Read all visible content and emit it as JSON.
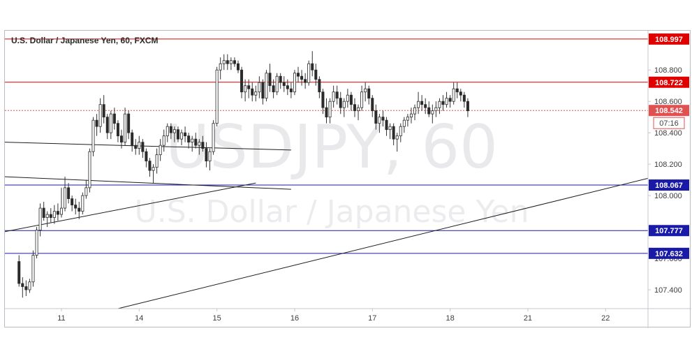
{
  "chart_data": {
    "type": "candlestick",
    "title": "U.S. Dollar / Japanese Yen, 60, FXCM",
    "watermark_symbol": "USDJPY, 60",
    "watermark_name": "U.S. Dollar / Japanese Yen",
    "x_ticks": [
      {
        "label": "11",
        "idx": 12
      },
      {
        "label": "14",
        "idx": 34
      },
      {
        "label": "15",
        "idx": 56
      },
      {
        "label": "16",
        "idx": 78
      },
      {
        "label": "17",
        "idx": 100
      },
      {
        "label": "18",
        "idx": 122
      },
      {
        "label": "21",
        "idx": 144
      },
      {
        "label": "22",
        "idx": 166
      }
    ],
    "y_ticks": [
      107.4,
      107.6,
      108.0,
      108.2,
      108.4,
      108.6,
      108.8
    ],
    "ylim": [
      107.28,
      109.05
    ],
    "xlim": [
      -4,
      178
    ],
    "horizontal_levels": [
      {
        "value": 108.997,
        "label": "108.997",
        "color": "#e00000"
      },
      {
        "value": 108.722,
        "label": "108.722",
        "color": "#e00000"
      },
      {
        "value": 108.067,
        "label": "108.067",
        "color": "#1a1aa8"
      },
      {
        "value": 107.777,
        "label": "107.777",
        "color": "#1a1aa8"
      },
      {
        "value": 107.632,
        "label": "107.632",
        "color": "#1a1aa8"
      }
    ],
    "last_price": {
      "value": 108.542,
      "label": "108.542",
      "countdown": "07:16",
      "color": "#e05252"
    },
    "trendlines": [
      {
        "x1": -4,
        "y1": 108.34,
        "x2": 77,
        "y2": 108.29
      },
      {
        "x1": -4,
        "y1": 108.12,
        "x2": 77,
        "y2": 108.04
      },
      {
        "x1": -4,
        "y1": 107.77,
        "x2": 67,
        "y2": 108.08
      },
      {
        "x1": 28,
        "y1": 107.28,
        "x2": 178,
        "y2": 108.11
      }
    ],
    "candles": [
      [
        107.58,
        107.62,
        107.42,
        107.44
      ],
      [
        107.44,
        107.48,
        107.35,
        107.42
      ],
      [
        107.42,
        107.46,
        107.36,
        107.4
      ],
      [
        107.4,
        107.47,
        107.38,
        107.45
      ],
      [
        107.45,
        107.65,
        107.42,
        107.62
      ],
      [
        107.62,
        107.8,
        107.6,
        107.78
      ],
      [
        107.78,
        107.95,
        107.74,
        107.92
      ],
      [
        107.92,
        107.96,
        107.84,
        107.86
      ],
      [
        107.86,
        107.9,
        107.8,
        107.88
      ],
      [
        107.88,
        107.92,
        107.83,
        107.86
      ],
      [
        107.86,
        107.94,
        107.82,
        107.9
      ],
      [
        107.9,
        107.95,
        107.84,
        107.88
      ],
      [
        107.88,
        108.05,
        107.86,
        107.92
      ],
      [
        107.92,
        108.12,
        107.9,
        108.05
      ],
      [
        108.05,
        108.08,
        107.95,
        107.98
      ],
      [
        107.98,
        108.0,
        107.9,
        107.94
      ],
      [
        107.94,
        107.98,
        107.88,
        107.92
      ],
      [
        107.92,
        107.96,
        107.85,
        107.9
      ],
      [
        107.9,
        108.02,
        107.88,
        108.0
      ],
      [
        108.0,
        108.1,
        107.98,
        108.05
      ],
      [
        108.05,
        108.3,
        108.02,
        108.28
      ],
      [
        108.28,
        108.5,
        108.25,
        108.48
      ],
      [
        108.48,
        108.52,
        108.38,
        108.44
      ],
      [
        108.44,
        108.62,
        108.4,
        108.58
      ],
      [
        108.58,
        108.64,
        108.46,
        108.5
      ],
      [
        108.5,
        108.52,
        108.36,
        108.4
      ],
      [
        108.4,
        108.54,
        108.36,
        108.52
      ],
      [
        108.52,
        108.56,
        108.42,
        108.46
      ],
      [
        108.46,
        108.48,
        108.34,
        108.38
      ],
      [
        108.38,
        108.42,
        108.3,
        108.34
      ],
      [
        108.34,
        108.56,
        108.32,
        108.52
      ],
      [
        108.52,
        108.54,
        108.36,
        108.4
      ],
      [
        108.4,
        108.42,
        108.28,
        108.32
      ],
      [
        108.32,
        108.36,
        108.26,
        108.3
      ],
      [
        108.3,
        108.38,
        108.26,
        108.34
      ],
      [
        108.34,
        108.36,
        108.24,
        108.28
      ],
      [
        108.28,
        108.3,
        108.18,
        108.22
      ],
      [
        108.22,
        108.24,
        108.12,
        108.16
      ],
      [
        108.16,
        108.2,
        108.08,
        108.18
      ],
      [
        108.18,
        108.3,
        108.14,
        108.26
      ],
      [
        108.26,
        108.36,
        108.22,
        108.32
      ],
      [
        108.32,
        108.42,
        108.28,
        108.38
      ],
      [
        108.38,
        108.46,
        108.34,
        108.44
      ],
      [
        108.44,
        108.46,
        108.36,
        108.4
      ],
      [
        108.4,
        108.44,
        108.34,
        108.42
      ],
      [
        108.42,
        108.44,
        108.34,
        108.36
      ],
      [
        108.36,
        108.42,
        108.32,
        108.4
      ],
      [
        108.4,
        108.44,
        108.34,
        108.38
      ],
      [
        108.38,
        108.4,
        108.3,
        108.34
      ],
      [
        108.34,
        108.38,
        108.28,
        108.36
      ],
      [
        108.36,
        108.4,
        108.3,
        108.32
      ],
      [
        108.32,
        108.36,
        108.26,
        108.34
      ],
      [
        108.34,
        108.38,
        108.28,
        108.3
      ],
      [
        108.3,
        108.34,
        108.18,
        108.22
      ],
      [
        108.22,
        108.3,
        108.16,
        108.28
      ],
      [
        108.28,
        108.48,
        108.26,
        108.46
      ],
      [
        108.46,
        108.82,
        108.44,
        108.8
      ],
      [
        108.8,
        108.88,
        108.74,
        108.84
      ],
      [
        108.84,
        108.9,
        108.8,
        108.86
      ],
      [
        108.86,
        108.9,
        108.8,
        108.84
      ],
      [
        108.84,
        108.88,
        108.8,
        108.86
      ],
      [
        108.86,
        108.88,
        108.82,
        108.84
      ],
      [
        108.84,
        108.86,
        108.78,
        108.8
      ],
      [
        108.8,
        108.82,
        108.62,
        108.66
      ],
      [
        108.66,
        108.74,
        108.6,
        108.7
      ],
      [
        108.7,
        108.74,
        108.62,
        108.68
      ],
      [
        108.68,
        108.72,
        108.6,
        108.64
      ],
      [
        108.64,
        108.7,
        108.6,
        108.66
      ],
      [
        108.66,
        108.76,
        108.62,
        108.72
      ],
      [
        108.72,
        108.74,
        108.58,
        108.62
      ],
      [
        108.62,
        108.8,
        108.6,
        108.78
      ],
      [
        108.78,
        108.84,
        108.66,
        108.7
      ],
      [
        108.7,
        108.74,
        108.62,
        108.66
      ],
      [
        108.66,
        108.78,
        108.64,
        108.76
      ],
      [
        108.76,
        108.78,
        108.68,
        108.72
      ],
      [
        108.72,
        108.76,
        108.66,
        108.7
      ],
      [
        108.7,
        108.74,
        108.64,
        108.68
      ],
      [
        108.68,
        108.72,
        108.62,
        108.66
      ],
      [
        108.66,
        108.8,
        108.64,
        108.78
      ],
      [
        108.78,
        108.82,
        108.72,
        108.76
      ],
      [
        108.76,
        108.8,
        108.7,
        108.74
      ],
      [
        108.74,
        108.78,
        108.68,
        108.72
      ],
      [
        108.72,
        108.86,
        108.7,
        108.84
      ],
      [
        108.84,
        108.92,
        108.76,
        108.8
      ],
      [
        108.8,
        108.84,
        108.7,
        108.74
      ],
      [
        108.74,
        108.76,
        108.62,
        108.66
      ],
      [
        108.66,
        108.68,
        108.52,
        108.56
      ],
      [
        108.56,
        108.62,
        108.46,
        108.5
      ],
      [
        108.5,
        108.62,
        108.46,
        108.6
      ],
      [
        108.6,
        108.7,
        108.56,
        108.66
      ],
      [
        108.66,
        108.7,
        108.58,
        108.62
      ],
      [
        108.62,
        108.66,
        108.52,
        108.56
      ],
      [
        108.56,
        108.62,
        108.5,
        108.6
      ],
      [
        108.6,
        108.68,
        108.56,
        108.64
      ],
      [
        108.64,
        108.66,
        108.54,
        108.58
      ],
      [
        108.58,
        108.62,
        108.5,
        108.54
      ],
      [
        108.54,
        108.58,
        108.48,
        108.56
      ],
      [
        108.56,
        108.7,
        108.54,
        108.66
      ],
      [
        108.66,
        108.72,
        108.6,
        108.68
      ],
      [
        108.68,
        108.7,
        108.58,
        108.62
      ],
      [
        108.62,
        108.64,
        108.5,
        108.54
      ],
      [
        108.54,
        108.58,
        108.42,
        108.46
      ],
      [
        108.46,
        108.52,
        108.4,
        108.5
      ],
      [
        108.5,
        108.54,
        108.44,
        108.48
      ],
      [
        108.48,
        108.5,
        108.38,
        108.42
      ],
      [
        108.42,
        108.46,
        108.36,
        108.44
      ],
      [
        108.44,
        108.46,
        108.32,
        108.36
      ],
      [
        108.36,
        108.4,
        108.28,
        108.38
      ],
      [
        108.38,
        108.46,
        108.34,
        108.44
      ],
      [
        108.44,
        108.5,
        108.4,
        108.48
      ],
      [
        108.48,
        108.52,
        108.44,
        108.5
      ],
      [
        108.5,
        108.56,
        108.46,
        108.52
      ],
      [
        108.52,
        108.58,
        108.48,
        108.56
      ],
      [
        108.56,
        108.66,
        108.52,
        108.6
      ],
      [
        108.6,
        108.64,
        108.54,
        108.58
      ],
      [
        108.58,
        108.62,
        108.52,
        108.56
      ],
      [
        108.56,
        108.6,
        108.5,
        108.52
      ],
      [
        108.52,
        108.58,
        108.46,
        108.54
      ],
      [
        108.54,
        108.6,
        108.5,
        108.56
      ],
      [
        108.56,
        108.62,
        108.52,
        108.6
      ],
      [
        108.6,
        108.64,
        108.54,
        108.58
      ],
      [
        108.58,
        108.66,
        108.56,
        108.62
      ],
      [
        108.62,
        108.64,
        108.56,
        108.6
      ],
      [
        108.6,
        108.72,
        108.58,
        108.68
      ],
      [
        108.68,
        108.72,
        108.62,
        108.66
      ],
      [
        108.66,
        108.68,
        108.6,
        108.64
      ],
      [
        108.64,
        108.66,
        108.56,
        108.6
      ],
      [
        108.6,
        108.62,
        108.5,
        108.54
      ]
    ]
  }
}
